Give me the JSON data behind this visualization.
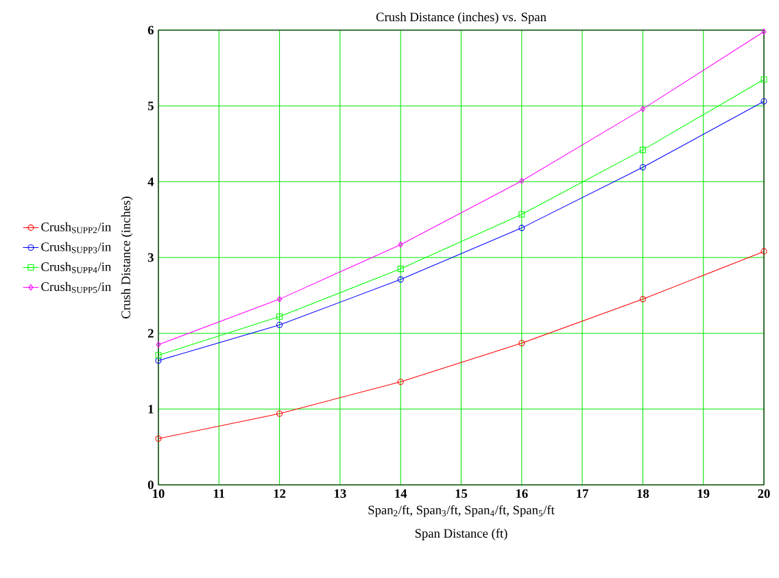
{
  "chart_data": {
    "type": "line",
    "title": "Crush Distance (inches) vs. Span",
    "xlabel": "Span Distance (ft)",
    "ylabel": "Crush Distance (inches)",
    "annotations": [
      "Span$_{2}$/ft, Span$_{3}$/ft, Span$_{4}$/ft, Span$_{5}$/ft"
    ],
    "x": [
      10,
      12,
      14,
      16,
      18,
      20
    ],
    "series": [
      {
        "name": "Crush$_{SUPP2}$/in",
        "color": "#ff0000",
        "marker": "circle",
        "values": [
          0.61,
          0.94,
          1.36,
          1.87,
          2.45,
          3.08
        ]
      },
      {
        "name": "Crush$_{SUPP3}$/in",
        "color": "#0000ff",
        "marker": "circle",
        "values": [
          1.64,
          2.11,
          2.71,
          3.39,
          4.19,
          5.06
        ]
      },
      {
        "name": "Crush$_{SUPP4}$/in",
        "color": "#00ff00",
        "marker": "square",
        "values": [
          1.71,
          2.22,
          2.85,
          3.57,
          4.42,
          5.35
        ]
      },
      {
        "name": "Crush$_{SUPP5}$/in",
        "color": "#ff00ff",
        "marker": "diamond",
        "values": [
          1.85,
          2.45,
          3.17,
          4.01,
          4.96,
          5.98
        ]
      }
    ],
    "xlim": [
      10,
      20
    ],
    "xticks": [
      10,
      11,
      12,
      13,
      14,
      15,
      16,
      17,
      18,
      19,
      20
    ],
    "ylim": [
      0,
      6
    ],
    "yticks": [
      0,
      1,
      2,
      3,
      4,
      5,
      6
    ],
    "grid": true,
    "legend": "left"
  }
}
